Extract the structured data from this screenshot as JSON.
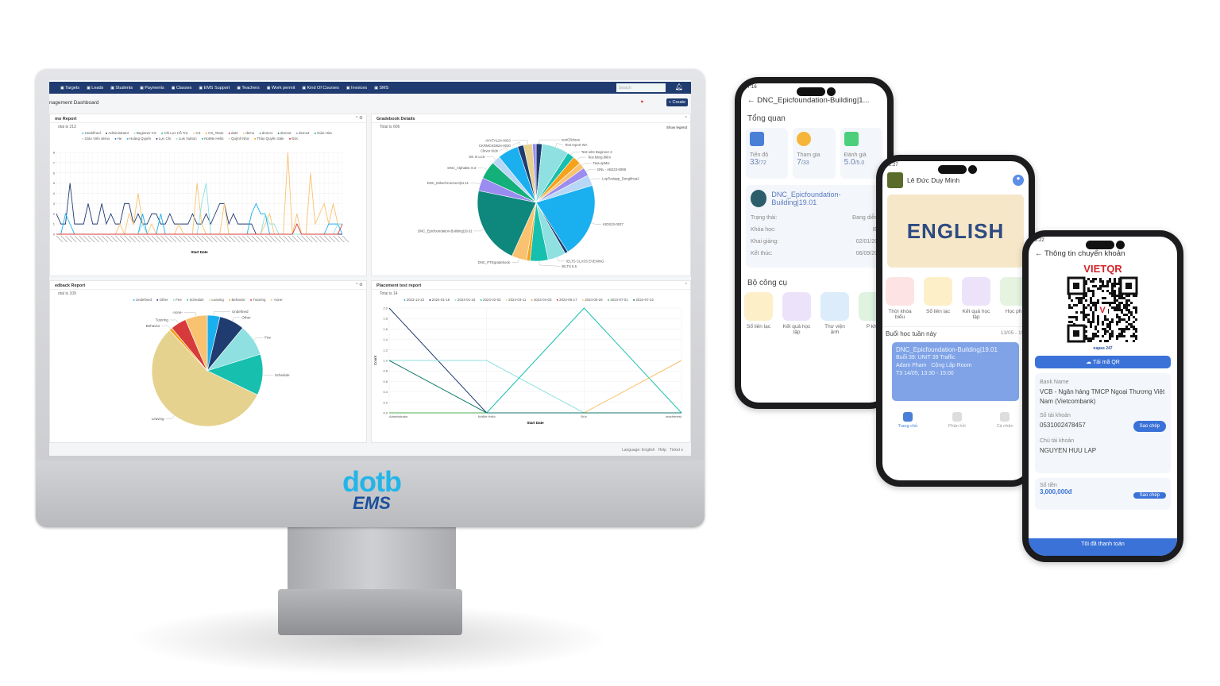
{
  "brand": {
    "logo_top": "dotb",
    "logo_bottom": "EMS"
  },
  "colors": {
    "nav": "#1f3b70",
    "accent": "#3a72d8"
  },
  "dashboard": {
    "nav": [
      "Targets",
      "Leads",
      "Students",
      "Payments",
      "Classes",
      "EMS Support",
      "Teachers",
      "Work permit",
      "Kind Of Courses",
      "Invoices",
      "SMS"
    ],
    "search_placeholder": "Search",
    "title": "nagement Dashboard",
    "create_label": "+ Create",
    "footer": {
      "language": "Language: English",
      "help": "Help",
      "ticket": "Ticket s"
    },
    "panels": {
      "demo": {
        "title": "mo Report",
        "total": "otal is 213"
      },
      "gradebook": {
        "title": "Gradebook Details",
        "total": "Total is 606",
        "show_legend": "Show legend"
      },
      "feedback": {
        "title": "edback Report",
        "total": "otal is 109"
      },
      "placement": {
        "title": "Placement test report",
        "total": "Total is 14"
      }
    }
  },
  "chart_data": [
    {
      "type": "line",
      "title": "mo Report",
      "xlabel": "Start Date",
      "ylabel": "",
      "ylim": [
        0,
        8
      ],
      "grid": true,
      "legend": "top",
      "legend_entries": [
        [
          "Undefined",
          "#1ab0f0"
        ],
        [
          "Administrator",
          "#1f3b70"
        ],
        [
          "Beginner CS",
          "#8fe0e0"
        ],
        [
          "Chi Lực Hỗ Trợ",
          "#17bfae"
        ],
        [
          "CS",
          "#e5d28f"
        ],
        [
          "CS_Team",
          "#f7a21b"
        ],
        [
          "dat2",
          "#d63a3a"
        ],
        [
          "demo",
          "#f9c270"
        ],
        [
          "demo1",
          "#4caf50"
        ],
        [
          "demo2",
          "#137a6e"
        ],
        [
          "demo4",
          "#9a8cf0"
        ],
        [
          "Giáo Hòa",
          "#13b07a"
        ],
        [
          "Giáo Viên demo",
          "#b8d6f5"
        ],
        [
          "He",
          "#2e7fd8"
        ],
        [
          "Hoàng Quyên",
          "#1ab0f0"
        ],
        [
          "Lực Chi",
          "#1f3b70"
        ],
        [
          "Luis Vuitton",
          "#8fe0e0"
        ],
        [
          "NotMe Hello",
          "#17bfae"
        ],
        [
          "Quỳnh Như",
          "#e5d28f"
        ],
        [
          "Thảo Quyên Sale",
          "#f7a21b"
        ],
        [
          "Đức",
          "#d63a3a"
        ]
      ],
      "series": [
        {
          "name": "Administrator",
          "color": "#1f3b70",
          "values": [
            2,
            1,
            1,
            5,
            1,
            1,
            1,
            3,
            1,
            1,
            3,
            1,
            2,
            1,
            1,
            3,
            3,
            1,
            2,
            1,
            1,
            2,
            2,
            1,
            1,
            2,
            1,
            1,
            1,
            1,
            2,
            1,
            1,
            2,
            1,
            2,
            3,
            3,
            1,
            2,
            1,
            1,
            1,
            1,
            0,
            0,
            0,
            0,
            0,
            0,
            0,
            0,
            0,
            0,
            0,
            0,
            0,
            0,
            0,
            0,
            0,
            0,
            0,
            0
          ]
        },
        {
          "name": "demo",
          "color": "#f9c270",
          "values": [
            0,
            0,
            0,
            0,
            0,
            0,
            0,
            0,
            0,
            0,
            0,
            0,
            0,
            0,
            1,
            0,
            2,
            1,
            4,
            1,
            0,
            1,
            0,
            0,
            0,
            0,
            0,
            1,
            0,
            0,
            0,
            5,
            1,
            0,
            0,
            0,
            0,
            3,
            0,
            0,
            0,
            0,
            0,
            0,
            0,
            0,
            1,
            2,
            0,
            0,
            0,
            8,
            0,
            2,
            0,
            0,
            6,
            1,
            2,
            3,
            1,
            3,
            1,
            1
          ]
        },
        {
          "name": "Hoàng Quyên",
          "color": "#1ab0f0",
          "values": [
            0,
            0,
            2,
            1,
            0,
            0,
            0,
            0,
            0,
            0,
            0,
            0,
            0,
            0,
            0,
            0,
            0,
            0,
            0,
            2,
            0,
            0,
            0,
            2,
            0,
            0,
            0,
            0,
            0,
            0,
            0,
            0,
            0,
            0,
            0,
            0,
            0,
            0,
            0,
            0,
            0,
            0,
            0,
            2,
            3,
            2,
            2,
            0,
            0,
            0,
            0,
            0,
            0,
            0,
            0,
            0,
            0,
            0,
            0,
            0,
            1,
            1,
            1,
            0
          ]
        },
        {
          "name": "Beginner CS",
          "color": "#8fe0e0",
          "values": [
            0,
            0,
            0,
            0,
            0,
            0,
            0,
            0,
            0,
            0,
            0,
            0,
            0,
            0,
            0,
            0,
            0,
            0,
            0,
            1,
            0,
            0,
            0,
            0,
            0,
            0,
            0,
            0,
            0,
            0,
            0,
            0,
            3,
            5,
            0,
            0,
            0,
            0,
            0,
            0,
            0,
            0,
            0,
            0,
            0,
            0,
            2,
            1,
            1,
            0,
            0,
            0,
            0,
            0,
            0,
            0,
            0,
            0,
            0,
            0,
            0,
            0,
            1,
            1
          ]
        },
        {
          "name": "Đức",
          "color": "#d63a3a",
          "values": [
            0,
            0,
            0,
            0,
            0,
            0,
            0,
            0,
            0,
            0,
            0,
            0,
            0,
            0,
            0,
            0,
            0,
            0,
            0,
            0,
            0,
            0,
            0,
            0,
            0,
            0,
            0,
            0,
            0,
            0,
            0,
            0,
            0,
            0,
            0,
            0,
            0,
            0,
            0,
            0,
            0,
            0,
            0,
            0,
            0,
            0,
            0,
            0,
            0,
            0,
            0,
            0,
            0,
            1,
            0,
            0,
            0,
            0,
            0,
            0,
            0,
            0,
            0,
            1
          ]
        }
      ]
    },
    {
      "type": "pie",
      "title": "Gradebook Details",
      "total": 606,
      "slices": [
        [
          "testCBclass",
          10,
          "#1f3b70"
        ],
        [
          "Test report WA",
          45,
          "#8fe0e0"
        ],
        [
          "Test Ielts Beginner 2",
          12,
          "#17bfae"
        ],
        [
          "Test bảng điểm",
          14,
          "#f7a21b"
        ],
        [
          "TaoLopMoi",
          10,
          "#f9c270"
        ],
        [
          "DNL - AB223-0089",
          14,
          "#9a8cf0"
        ],
        [
          "LopTestapp_Dungkhoa2",
          18,
          "#b8d6f5"
        ],
        [
          "KIDS23-0027",
          125,
          "#1ab0f0"
        ],
        [
          "",
          5,
          "#1f3b70"
        ],
        [
          "IELTS CLASS EVENING",
          30,
          "#8fe0e0"
        ],
        [
          "IELTS 5.5",
          30,
          "#17bfae"
        ],
        [
          "",
          6,
          "#f7a21b"
        ],
        [
          "DNC_PTEgradebook",
          25,
          "#f9c270"
        ],
        [
          "DNC_Epicfoundation-Building|19.01",
          130,
          "#0e877c"
        ],
        [
          "DNC_EdtechConnect|11.11",
          22,
          "#9a8cf0"
        ],
        [
          "DNC_AlphaBC 8.3",
          30,
          "#13b07a"
        ],
        [
          "DK In LCK",
          14,
          "#b8d6f5"
        ],
        [
          "Clever Kids",
          35,
          "#1ab0f0"
        ],
        [
          "CKRMCKD824-0030",
          10,
          "#1f3b70"
        ],
        [
          "AVVTA124-0023",
          15,
          "#e5d28f"
        ],
        [
          "",
          6,
          "#9a8cf0"
        ]
      ]
    },
    {
      "type": "pie",
      "title": "edback Report",
      "total": 109,
      "legend": "top",
      "slices": [
        [
          "Undefined",
          4,
          "#1ab0f0"
        ],
        [
          "Other",
          8,
          "#1f3b70"
        ],
        [
          "Fee",
          10,
          "#8fe0e0"
        ],
        [
          "Schedule",
          13,
          "#17bfae"
        ],
        [
          "Leaving",
          61,
          "#e5d28f"
        ],
        [
          "Behavior",
          1,
          "#f7a21b"
        ],
        [
          "Tutoring",
          5,
          "#d63a3a"
        ],
        [
          "-none-",
          7,
          "#f9c270"
        ]
      ]
    },
    {
      "type": "line",
      "title": "Placement test report",
      "xlabel": "Start Date",
      "ylabel": "Count",
      "ylim": [
        0,
        2
      ],
      "grid": true,
      "legend": "top",
      "categories": [
        "Administrator",
        "NotMe Hello",
        "Đức",
        "teachertest"
      ],
      "yticks": [
        "0.0",
        "0.2",
        "0.4",
        "0.6",
        "0.8",
        "1.0",
        "1.2",
        "1.4",
        "1.6",
        "1.8",
        "2.0"
      ],
      "series": [
        {
          "name": "2023-12-22",
          "color": "#1ab0f0",
          "values": [
            0,
            0,
            0,
            0
          ]
        },
        {
          "name": "2024-01-16",
          "color": "#1f3b70",
          "values": [
            2,
            0,
            0,
            0
          ]
        },
        {
          "name": "2024-01-24",
          "color": "#8fe0e0",
          "values": [
            1,
            1,
            0,
            0
          ]
        },
        {
          "name": "2024-02-03",
          "color": "#17bfae",
          "values": [
            0,
            0,
            2,
            0
          ]
        },
        {
          "name": "2024-03-11",
          "color": "#e5d28f",
          "values": [
            0,
            0,
            0,
            0
          ]
        },
        {
          "name": "2024-04-03",
          "color": "#f7a21b",
          "values": [
            0,
            0,
            0,
            0
          ]
        },
        {
          "name": "2024-06-17",
          "color": "#d63a3a",
          "values": [
            0,
            0,
            0,
            0
          ]
        },
        {
          "name": "2024-06-26",
          "color": "#f9c270",
          "values": [
            0,
            0,
            0,
            1
          ]
        },
        {
          "name": "2024-07-01",
          "color": "#4caf50",
          "values": [
            0,
            0,
            0,
            0
          ]
        },
        {
          "name": "2024-07-22",
          "color": "#137a6e",
          "values": [
            1,
            0,
            0,
            0
          ]
        }
      ]
    }
  ],
  "phone1": {
    "time": "7:16",
    "title": "DNC_Epicfoundation-Building|1...",
    "overview": "Tổng quan",
    "stats": [
      {
        "label": "Tiến độ",
        "value": "33",
        "max": "/72"
      },
      {
        "label": "Tham gia",
        "value": "7",
        "max": "/33"
      },
      {
        "label": "Đánh giá",
        "value": "5.0",
        "max": "/5.0"
      }
    ],
    "class_name": "DNC_Epicfoundation-Building|19.01",
    "rows": [
      [
        "Trạng thái:",
        "Đang diễn"
      ],
      [
        "Khóa học:",
        "IE"
      ],
      [
        "Khai giảng:",
        "02/01/20"
      ],
      [
        "Kết thúc:",
        "06/09/20"
      ]
    ],
    "tools_title": "Bộ công cụ",
    "tools": [
      "Sổ liên lạc",
      "Kết quả học tập",
      "Thư viện ảnh",
      "P khó"
    ]
  },
  "phone2": {
    "time": "2:27",
    "user": "Lê Đức Duy Minh",
    "banner": "ENGLISH",
    "tools": [
      "Thời khóa biểu",
      "Sổ liên lạc",
      "Kết quả học tập",
      "Học phí"
    ],
    "week_title": "Buổi học tuần này",
    "week_range": "13/05 - 19/",
    "lesson": {
      "name": "DNC_Epicfoundation-Building|19.01",
      "session": "Buổi 39: UNIT 39 Traffic",
      "teacher": "Adam Pham",
      "room": "Cộng Lập Room",
      "time": "T3 14/05, 13:30 - 15:00"
    },
    "tabs": [
      "Trang chủ",
      "Phản hồi",
      "Cá nhân"
    ]
  },
  "phone3": {
    "time": "3:22",
    "title": "Thông tin chuyển khoản",
    "qr_brand": "VIETQR",
    "napas": "napas 247",
    "download": "Tải mã QR",
    "bank_label": "Bank Name",
    "bank": "VCB - Ngân hàng TMCP Ngoại Thương Việt Nam (Vietcombank)",
    "account_label": "Số tài khoản",
    "account": "0531002478457",
    "copy": "Sao chép",
    "owner_label": "Chủ tài khoản",
    "owner": "NGUYEN HUU LAP",
    "amount_label": "Số tiền",
    "amount": "3,000,000đ",
    "paid": "Tôi đã thanh toán"
  }
}
